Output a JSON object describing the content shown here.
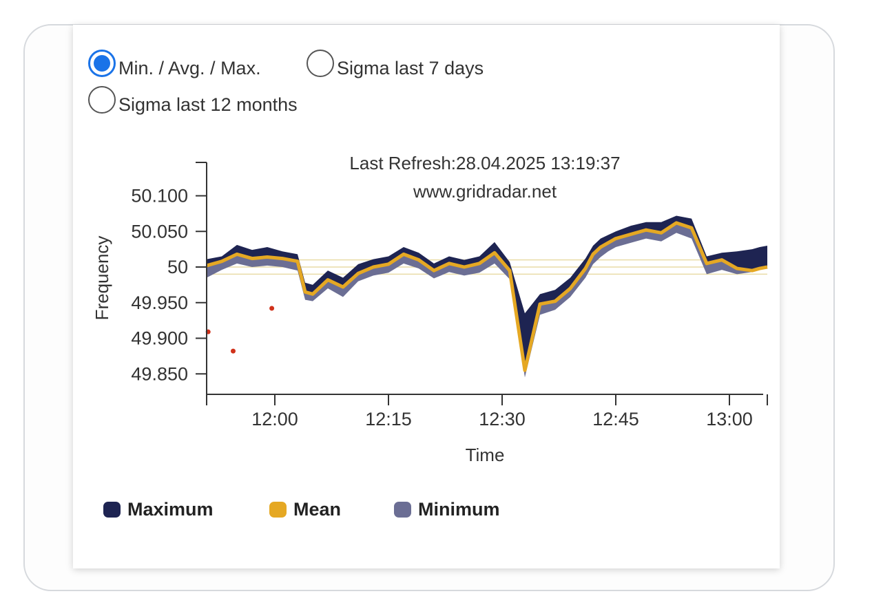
{
  "view_options": [
    {
      "label": "Min. / Avg. / Max.",
      "checked": true
    },
    {
      "label": "Sigma last 7 days",
      "checked": false
    },
    {
      "label": "Sigma last 12 months",
      "checked": false
    }
  ],
  "chart_data": {
    "type": "area",
    "annotation_lines": [
      "Last Refresh:28.04.2025 13:19:37",
      "www.gridradar.net"
    ],
    "xlabel": "Time",
    "ylabel": "Frequency",
    "x_ticks": [
      "12:00",
      "12:15",
      "12:30",
      "12:45",
      "13:00"
    ],
    "y_ticks": [
      "49.850",
      "49.900",
      "49.950",
      "50",
      "50.050",
      "50.100"
    ],
    "ylim": [
      49.82,
      50.15
    ],
    "x_unit": "minutes after 11:51",
    "x_start": "11:51",
    "x_end": "13:05",
    "reference_lines": [
      50.01,
      50.0,
      49.99
    ],
    "x": [
      0,
      2,
      4,
      6,
      8,
      10,
      12,
      13,
      14,
      16,
      18,
      20,
      22,
      24,
      26,
      28,
      30,
      32,
      34,
      36,
      38,
      40,
      42,
      44,
      46,
      48,
      50,
      51,
      52,
      53,
      54,
      56,
      58,
      60,
      62,
      64,
      66,
      68,
      70,
      72,
      73,
      74
    ],
    "series": [
      {
        "name": "Maximum",
        "color": "#1e2452",
        "values": [
          50.011,
          50.015,
          50.031,
          50.024,
          50.028,
          50.022,
          50.018,
          49.978,
          49.975,
          49.995,
          49.985,
          50.004,
          50.011,
          50.015,
          50.028,
          50.02,
          50.005,
          50.015,
          50.01,
          50.015,
          50.035,
          50.007,
          49.935,
          49.962,
          49.968,
          49.985,
          50.012,
          50.03,
          50.04,
          50.045,
          50.05,
          50.058,
          50.063,
          50.063,
          50.072,
          50.068,
          50.015,
          50.02,
          50.022,
          50.025,
          50.028,
          50.03
        ]
      },
      {
        "name": "Mean",
        "color": "#e5a823",
        "values": [
          50.002,
          50.008,
          50.018,
          50.012,
          50.014,
          50.012,
          50.008,
          49.965,
          49.962,
          49.982,
          49.972,
          49.991,
          50.0,
          50.004,
          50.018,
          50.01,
          49.995,
          50.005,
          50.0,
          50.005,
          50.02,
          49.995,
          49.855,
          49.948,
          49.952,
          49.97,
          49.998,
          50.018,
          50.028,
          50.034,
          50.04,
          50.046,
          50.052,
          50.048,
          50.062,
          50.055,
          50.005,
          50.01,
          49.998,
          49.995,
          49.998,
          50.0
        ]
      },
      {
        "name": "Minimum",
        "color": "#6b6e94",
        "values": [
          49.985,
          49.996,
          50.005,
          50.0,
          50.002,
          50.0,
          49.995,
          49.954,
          49.952,
          49.97,
          49.958,
          49.98,
          49.988,
          49.992,
          50.005,
          49.998,
          49.984,
          49.993,
          49.988,
          49.992,
          50.005,
          49.983,
          49.845,
          49.933,
          49.94,
          49.958,
          49.985,
          50.004,
          50.014,
          50.022,
          50.028,
          50.034,
          50.04,
          50.036,
          50.048,
          50.04,
          49.99,
          49.996,
          49.99,
          49.993,
          49.996,
          49.998
        ]
      }
    ],
    "outliers": [
      {
        "x": 0.2,
        "y": 49.909,
        "color": "#d0311a"
      },
      {
        "x": 3.5,
        "y": 49.882,
        "color": "#d0311a"
      },
      {
        "x": 8.6,
        "y": 49.942,
        "color": "#d0311a"
      }
    ],
    "legend": [
      "Maximum",
      "Mean",
      "Minimum"
    ]
  }
}
